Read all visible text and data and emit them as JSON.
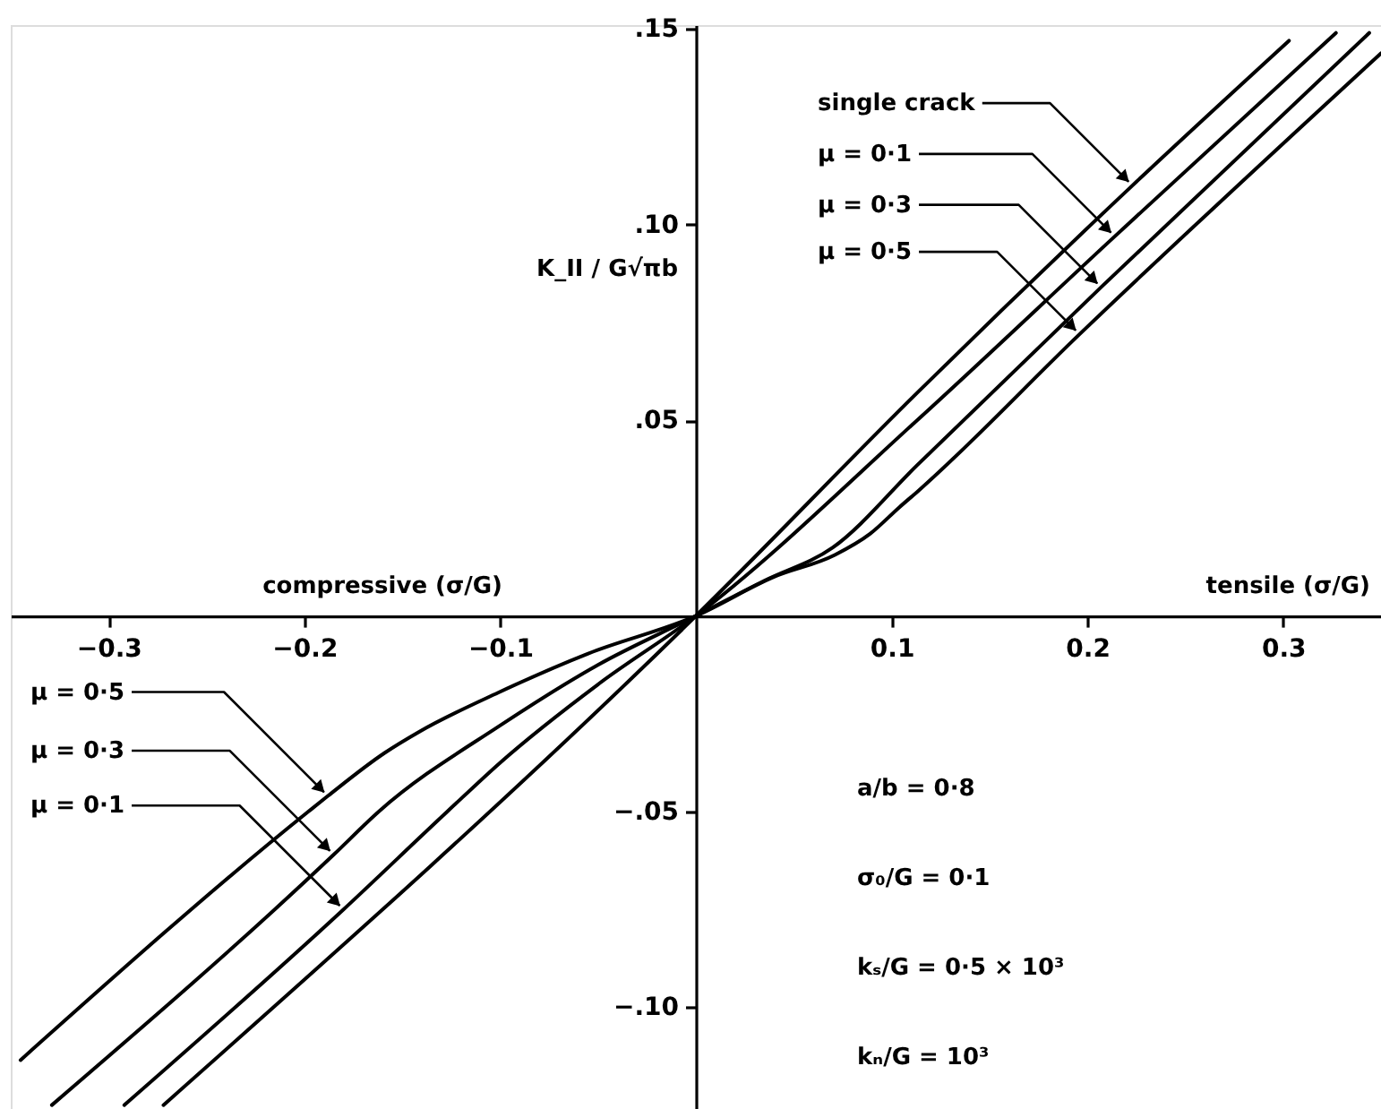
{
  "chart_data": {
    "type": "line",
    "ylabel": "K_II / G√πb",
    "xlim": [
      -0.35,
      0.35
    ],
    "ylim": [
      -0.126,
      0.151
    ],
    "xticks": [
      {
        "value": -0.3,
        "label": "−0.3"
      },
      {
        "value": -0.2,
        "label": "−0.2"
      },
      {
        "value": -0.1,
        "label": "−0.1"
      },
      {
        "value": 0.1,
        "label": "0.1"
      },
      {
        "value": 0.2,
        "label": "0.2"
      },
      {
        "value": 0.3,
        "label": "0.3"
      }
    ],
    "yticks": [
      {
        "value": -0.1,
        "label": "−.10"
      },
      {
        "value": -0.05,
        "label": "−.05"
      },
      {
        "value": 0.05,
        "label": ".05"
      },
      {
        "value": 0.1,
        "label": ".10"
      },
      {
        "value": 0.15,
        "label": ".15"
      }
    ],
    "series": [
      {
        "color": "#000000",
        "x": [
          -0.272,
          0,
          0.113,
          0.223,
          0.303
        ],
        "values": [
          -0.125,
          0,
          0.057,
          0.11,
          0.147
        ]
      },
      {
        "color": "#000000",
        "x": [
          -0.292,
          -0.18,
          -0.127,
          -0.1,
          -0.05,
          0,
          0.113,
          0.214,
          0.327
        ],
        "values": [
          -0.125,
          -0.075,
          -0.05,
          -0.0375,
          -0.0175,
          0,
          0.05,
          0.097,
          0.149
        ]
      },
      {
        "color": "#000000",
        "x": [
          -0.329,
          -0.185,
          -0.162,
          -0.1,
          -0.05,
          0,
          0.035,
          0.07,
          0.113,
          0.207,
          0.344
        ],
        "values": [
          -0.125,
          -0.061,
          -0.05,
          -0.028,
          -0.0125,
          0,
          0.009,
          0.0175,
          0.0385,
          0.084,
          0.149
        ]
      },
      {
        "color": "#000000",
        "x": [
          -0.345,
          -0.198,
          -0.188,
          -0.159,
          -0.141,
          -0.101,
          -0.055,
          0,
          0.04,
          0.071,
          0.089,
          0.104,
          0.113,
          0.196,
          0.35
        ],
        "values": [
          -0.1135,
          -0.05,
          -0.046,
          -0.035,
          -0.0295,
          -0.0196,
          -0.0096,
          0,
          0.01,
          0.0156,
          0.021,
          0.0278,
          0.0317,
          0.072,
          0.1438
        ]
      }
    ],
    "annotations": [
      {
        "text": "single crack",
        "x": 0.223,
        "y": 0.11
      },
      {
        "text": "μ = 0·1",
        "x": 0.214,
        "y": 0.097
      },
      {
        "text": "μ = 0·3",
        "x": 0.207,
        "y": 0.084
      },
      {
        "text": "μ = 0·5",
        "x": 0.196,
        "y": 0.072
      },
      {
        "text": "μ = 0·5",
        "x": -0.188,
        "y": -0.046
      },
      {
        "text": "μ = 0·3",
        "x": -0.185,
        "y": -0.061
      },
      {
        "text": "μ = 0·1",
        "x": -0.18,
        "y": -0.075
      },
      "compressive (σ/G)",
      "tensile (σ/G)",
      "a/b = 0·8",
      "σ₀/G = 0·1",
      "kₛ/G = 0·5 × 10³",
      "kₙ/G = 10³"
    ]
  }
}
